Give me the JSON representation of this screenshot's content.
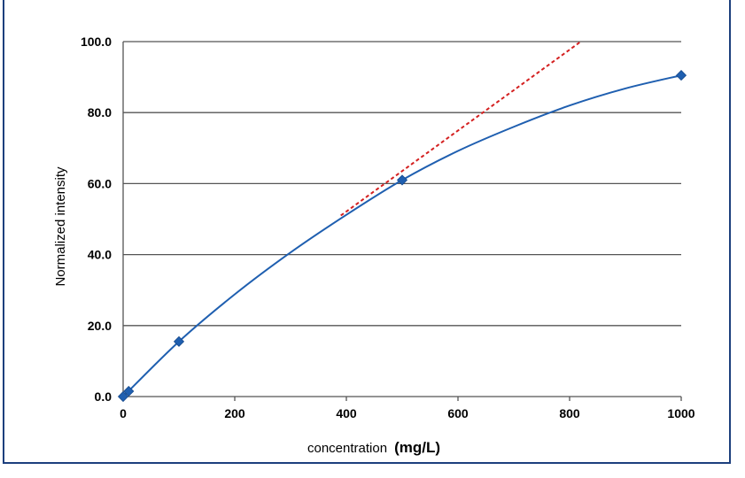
{
  "chart_data": {
    "type": "scatter",
    "title": "",
    "xlabel": "concentration",
    "xlabel_unit": "(mg/L)",
    "ylabel": "Normalized intensity",
    "xlim": [
      0,
      1000
    ],
    "ylim": [
      0,
      100
    ],
    "x_ticks": [
      "0",
      "200",
      "400",
      "600",
      "800",
      "1000"
    ],
    "y_ticks": [
      "0.0",
      "20.0",
      "40.0",
      "60.0",
      "80.0",
      "100.0"
    ],
    "grid": "horizontal",
    "series": [
      {
        "kind": "points",
        "x": [
          0,
          10,
          100,
          500,
          1000
        ],
        "y": [
          0.0,
          1.5,
          15.5,
          61.0,
          90.5
        ],
        "color": "#1f5fb0"
      },
      {
        "kind": "fit-curve",
        "x": [
          0,
          100,
          200,
          300,
          400,
          500,
          600,
          700,
          800,
          900,
          1000
        ],
        "y": [
          0.0,
          15.5,
          28.8,
          40.6,
          51.2,
          61.0,
          69.2,
          76.0,
          82.0,
          86.8,
          90.5
        ],
        "color": "#1f5fb0"
      },
      {
        "kind": "linear-extrapolation",
        "x": [
          390,
          820
        ],
        "y": [
          51.0,
          100.0
        ],
        "color": "#d42020",
        "dashed": true
      }
    ]
  }
}
